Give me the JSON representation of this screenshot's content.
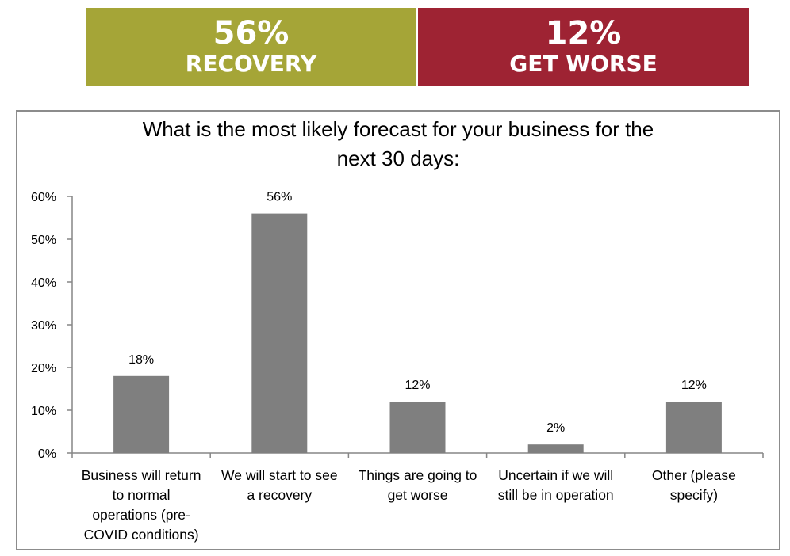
{
  "banners": [
    {
      "value": "56%",
      "label": "RECOVERY",
      "color": "#a5a537"
    },
    {
      "value": "12%",
      "label": "GET WORSE",
      "color": "#9e2333"
    }
  ],
  "chart_data": {
    "type": "bar",
    "title": "What is the most likely forecast for your business for the next 30 days:",
    "title_lines": [
      "What is the most likely forecast for your business for the",
      "next 30 days:"
    ],
    "categories": [
      "Business will return to normal operations (pre-COVID conditions)",
      "We will start to see a recovery",
      "Things are going to get worse",
      "Uncertain if we will still be in operation",
      "Other (please specify)"
    ],
    "category_lines": [
      [
        "Business will return",
        "to normal",
        "operations (pre-",
        "COVID conditions)"
      ],
      [
        "We will start to see",
        "a recovery"
      ],
      [
        "Things are going to",
        "get worse"
      ],
      [
        "Uncertain if we will",
        "still be in operation"
      ],
      [
        "Other (please",
        "specify)"
      ]
    ],
    "values": [
      18,
      56,
      12,
      2,
      12
    ],
    "data_labels": [
      "18%",
      "56%",
      "12%",
      "2%",
      "12%"
    ],
    "y_ticks": [
      "0%",
      "10%",
      "20%",
      "30%",
      "40%",
      "50%",
      "60%"
    ],
    "ylim": [
      0,
      60
    ],
    "xlabel": "",
    "ylabel": "",
    "grid": false,
    "legend": "none",
    "bar_color": "#7f7f7f"
  }
}
